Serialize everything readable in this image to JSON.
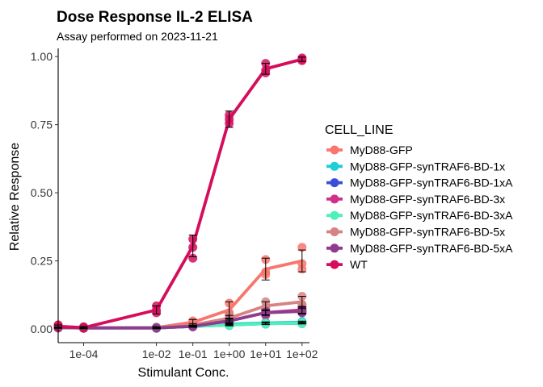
{
  "chart_data": {
    "type": "line",
    "title": "Dose Response IL-2 ELISA",
    "subtitle": "Assay performed on 2023-11-21",
    "xlabel": "Stimulant Conc.",
    "ylabel": "Relative Response",
    "x_scale": "log10",
    "xlim": [
      2e-05,
      160
    ],
    "ylim": [
      -0.05,
      1.03
    ],
    "x_ticks": [
      {
        "value": 0.0001,
        "label": "1e-04"
      },
      {
        "value": 0.01,
        "label": "1e-02"
      },
      {
        "value": 0.1,
        "label": "1e-01"
      },
      {
        "value": 1,
        "label": "1e+00"
      },
      {
        "value": 10,
        "label": "1e+01"
      },
      {
        "value": 100,
        "label": "1e+02"
      }
    ],
    "y_ticks": [
      {
        "value": 0,
        "label": "0.00"
      },
      {
        "value": 0.25,
        "label": "0.25"
      },
      {
        "value": 0.5,
        "label": "0.50"
      },
      {
        "value": 0.75,
        "label": "0.75"
      },
      {
        "value": 1,
        "label": "1.00"
      }
    ],
    "grid": false,
    "legend_title": "CELL_LINE",
    "legend_position": "right",
    "x": [
      2e-05,
      0.0001,
      0.01,
      0.1,
      1,
      10,
      100
    ],
    "series": [
      {
        "name": "MyD88-GFP",
        "color": "#F8766D",
        "mean": [
          0.01,
          0.005,
          0.005,
          0.025,
          0.07,
          0.22,
          0.25
        ],
        "err": [
          0.005,
          0.004,
          0.004,
          0.01,
          0.03,
          0.04,
          0.04
        ],
        "points": [
          [
            0.015,
            0.008,
            0.005
          ],
          [
            0.008,
            0.003,
            0.005
          ],
          [
            0.007,
            0.003,
            0.005
          ],
          [
            0.03,
            0.02,
            0.025
          ],
          [
            0.095,
            0.06,
            0.055
          ],
          [
            0.255,
            0.2,
            0.21
          ],
          [
            0.3,
            0.24,
            0.22
          ]
        ]
      },
      {
        "name": "MyD88-GFP-synTRAF6-BD-1x",
        "color": "#1ECFD6",
        "mean": [
          0.005,
          0.004,
          0.005,
          0.012,
          0.018,
          0.022,
          0.025
        ],
        "err": [
          0.002,
          0.002,
          0.002,
          0.003,
          0.003,
          0.004,
          0.004
        ],
        "points": [
          [
            0.006,
            0.004,
            0.005
          ],
          [
            0.005,
            0.003,
            0.004
          ],
          [
            0.006,
            0.004,
            0.005
          ],
          [
            0.014,
            0.011,
            0.012
          ],
          [
            0.02,
            0.016,
            0.018
          ],
          [
            0.025,
            0.02,
            0.022
          ],
          [
            0.028,
            0.022,
            0.025
          ]
        ]
      },
      {
        "name": "MyD88-GFP-synTRAF6-BD-1xA",
        "color": "#3A4ED8",
        "mean": [
          0.005,
          0.004,
          0.004,
          0.01,
          0.015,
          0.02,
          0.022
        ],
        "err": [
          0.002,
          0.002,
          0.002,
          0.003,
          0.003,
          0.003,
          0.003
        ],
        "points": [
          [
            0.006,
            0.004,
            0.005
          ],
          [
            0.005,
            0.003,
            0.004
          ],
          [
            0.005,
            0.003,
            0.004
          ],
          [
            0.012,
            0.009,
            0.01
          ],
          [
            0.017,
            0.013,
            0.015
          ],
          [
            0.022,
            0.018,
            0.02
          ],
          [
            0.024,
            0.02,
            0.022
          ]
        ]
      },
      {
        "name": "MyD88-GFP-synTRAF6-BD-3x",
        "color": "#D1308A",
        "mean": [
          0.005,
          0.004,
          0.004,
          0.01,
          0.03,
          0.06,
          0.07
        ],
        "err": [
          0.002,
          0.002,
          0.002,
          0.004,
          0.008,
          0.01,
          0.012
        ],
        "points": [
          [
            0.006,
            0.004,
            0.005
          ],
          [
            0.005,
            0.003,
            0.004
          ],
          [
            0.005,
            0.003,
            0.004
          ],
          [
            0.013,
            0.008,
            0.01
          ],
          [
            0.035,
            0.025,
            0.03
          ],
          [
            0.07,
            0.05,
            0.06
          ],
          [
            0.08,
            0.06,
            0.07
          ]
        ]
      },
      {
        "name": "MyD88-GFP-synTRAF6-BD-3xA",
        "color": "#50F0B8",
        "mean": [
          0.005,
          0.004,
          0.004,
          0.01,
          0.015,
          0.02,
          0.022
        ],
        "err": [
          0.002,
          0.002,
          0.002,
          0.003,
          0.003,
          0.003,
          0.003
        ],
        "points": [
          [
            0.006,
            0.004,
            0.005
          ],
          [
            0.005,
            0.003,
            0.004
          ],
          [
            0.005,
            0.003,
            0.004
          ],
          [
            0.012,
            0.009,
            0.01
          ],
          [
            0.017,
            0.013,
            0.015
          ],
          [
            0.022,
            0.018,
            0.02
          ],
          [
            0.024,
            0.02,
            0.022
          ]
        ]
      },
      {
        "name": "MyD88-GFP-synTRAF6-BD-5x",
        "color": "#D68383",
        "mean": [
          0.005,
          0.004,
          0.005,
          0.015,
          0.04,
          0.085,
          0.1
        ],
        "err": [
          0.002,
          0.002,
          0.002,
          0.005,
          0.01,
          0.015,
          0.02
        ],
        "points": [
          [
            0.006,
            0.004,
            0.005
          ],
          [
            0.005,
            0.003,
            0.004
          ],
          [
            0.006,
            0.004,
            0.005
          ],
          [
            0.02,
            0.012,
            0.013
          ],
          [
            0.05,
            0.035,
            0.035
          ],
          [
            0.1,
            0.08,
            0.075
          ],
          [
            0.12,
            0.09,
            0.09
          ]
        ]
      },
      {
        "name": "MyD88-GFP-synTRAF6-BD-5xA",
        "color": "#8E3C8E",
        "mean": [
          0.005,
          0.004,
          0.004,
          0.01,
          0.03,
          0.06,
          0.065
        ],
        "err": [
          0.002,
          0.002,
          0.002,
          0.003,
          0.006,
          0.008,
          0.01
        ],
        "points": [
          [
            0.006,
            0.004,
            0.005
          ],
          [
            0.005,
            0.003,
            0.004
          ],
          [
            0.005,
            0.003,
            0.004
          ],
          [
            0.012,
            0.008,
            0.01
          ],
          [
            0.034,
            0.027,
            0.03
          ],
          [
            0.066,
            0.055,
            0.06
          ],
          [
            0.072,
            0.06,
            0.065
          ]
        ]
      },
      {
        "name": "WT",
        "color": "#D40E5C",
        "mean": [
          0.01,
          0.005,
          0.07,
          0.305,
          0.77,
          0.955,
          0.99
        ],
        "err": [
          0.005,
          0.004,
          0.015,
          0.04,
          0.03,
          0.02,
          0.008
        ],
        "points": [
          [
            0.015,
            0.008,
            0.008
          ],
          [
            0.008,
            0.003,
            0.004
          ],
          [
            0.085,
            0.07,
            0.06
          ],
          [
            0.33,
            0.3,
            0.26
          ],
          [
            0.785,
            0.77,
            0.755
          ],
          [
            0.975,
            0.95,
            0.94
          ],
          [
            0.995,
            0.99,
            0.985
          ]
        ]
      }
    ]
  }
}
